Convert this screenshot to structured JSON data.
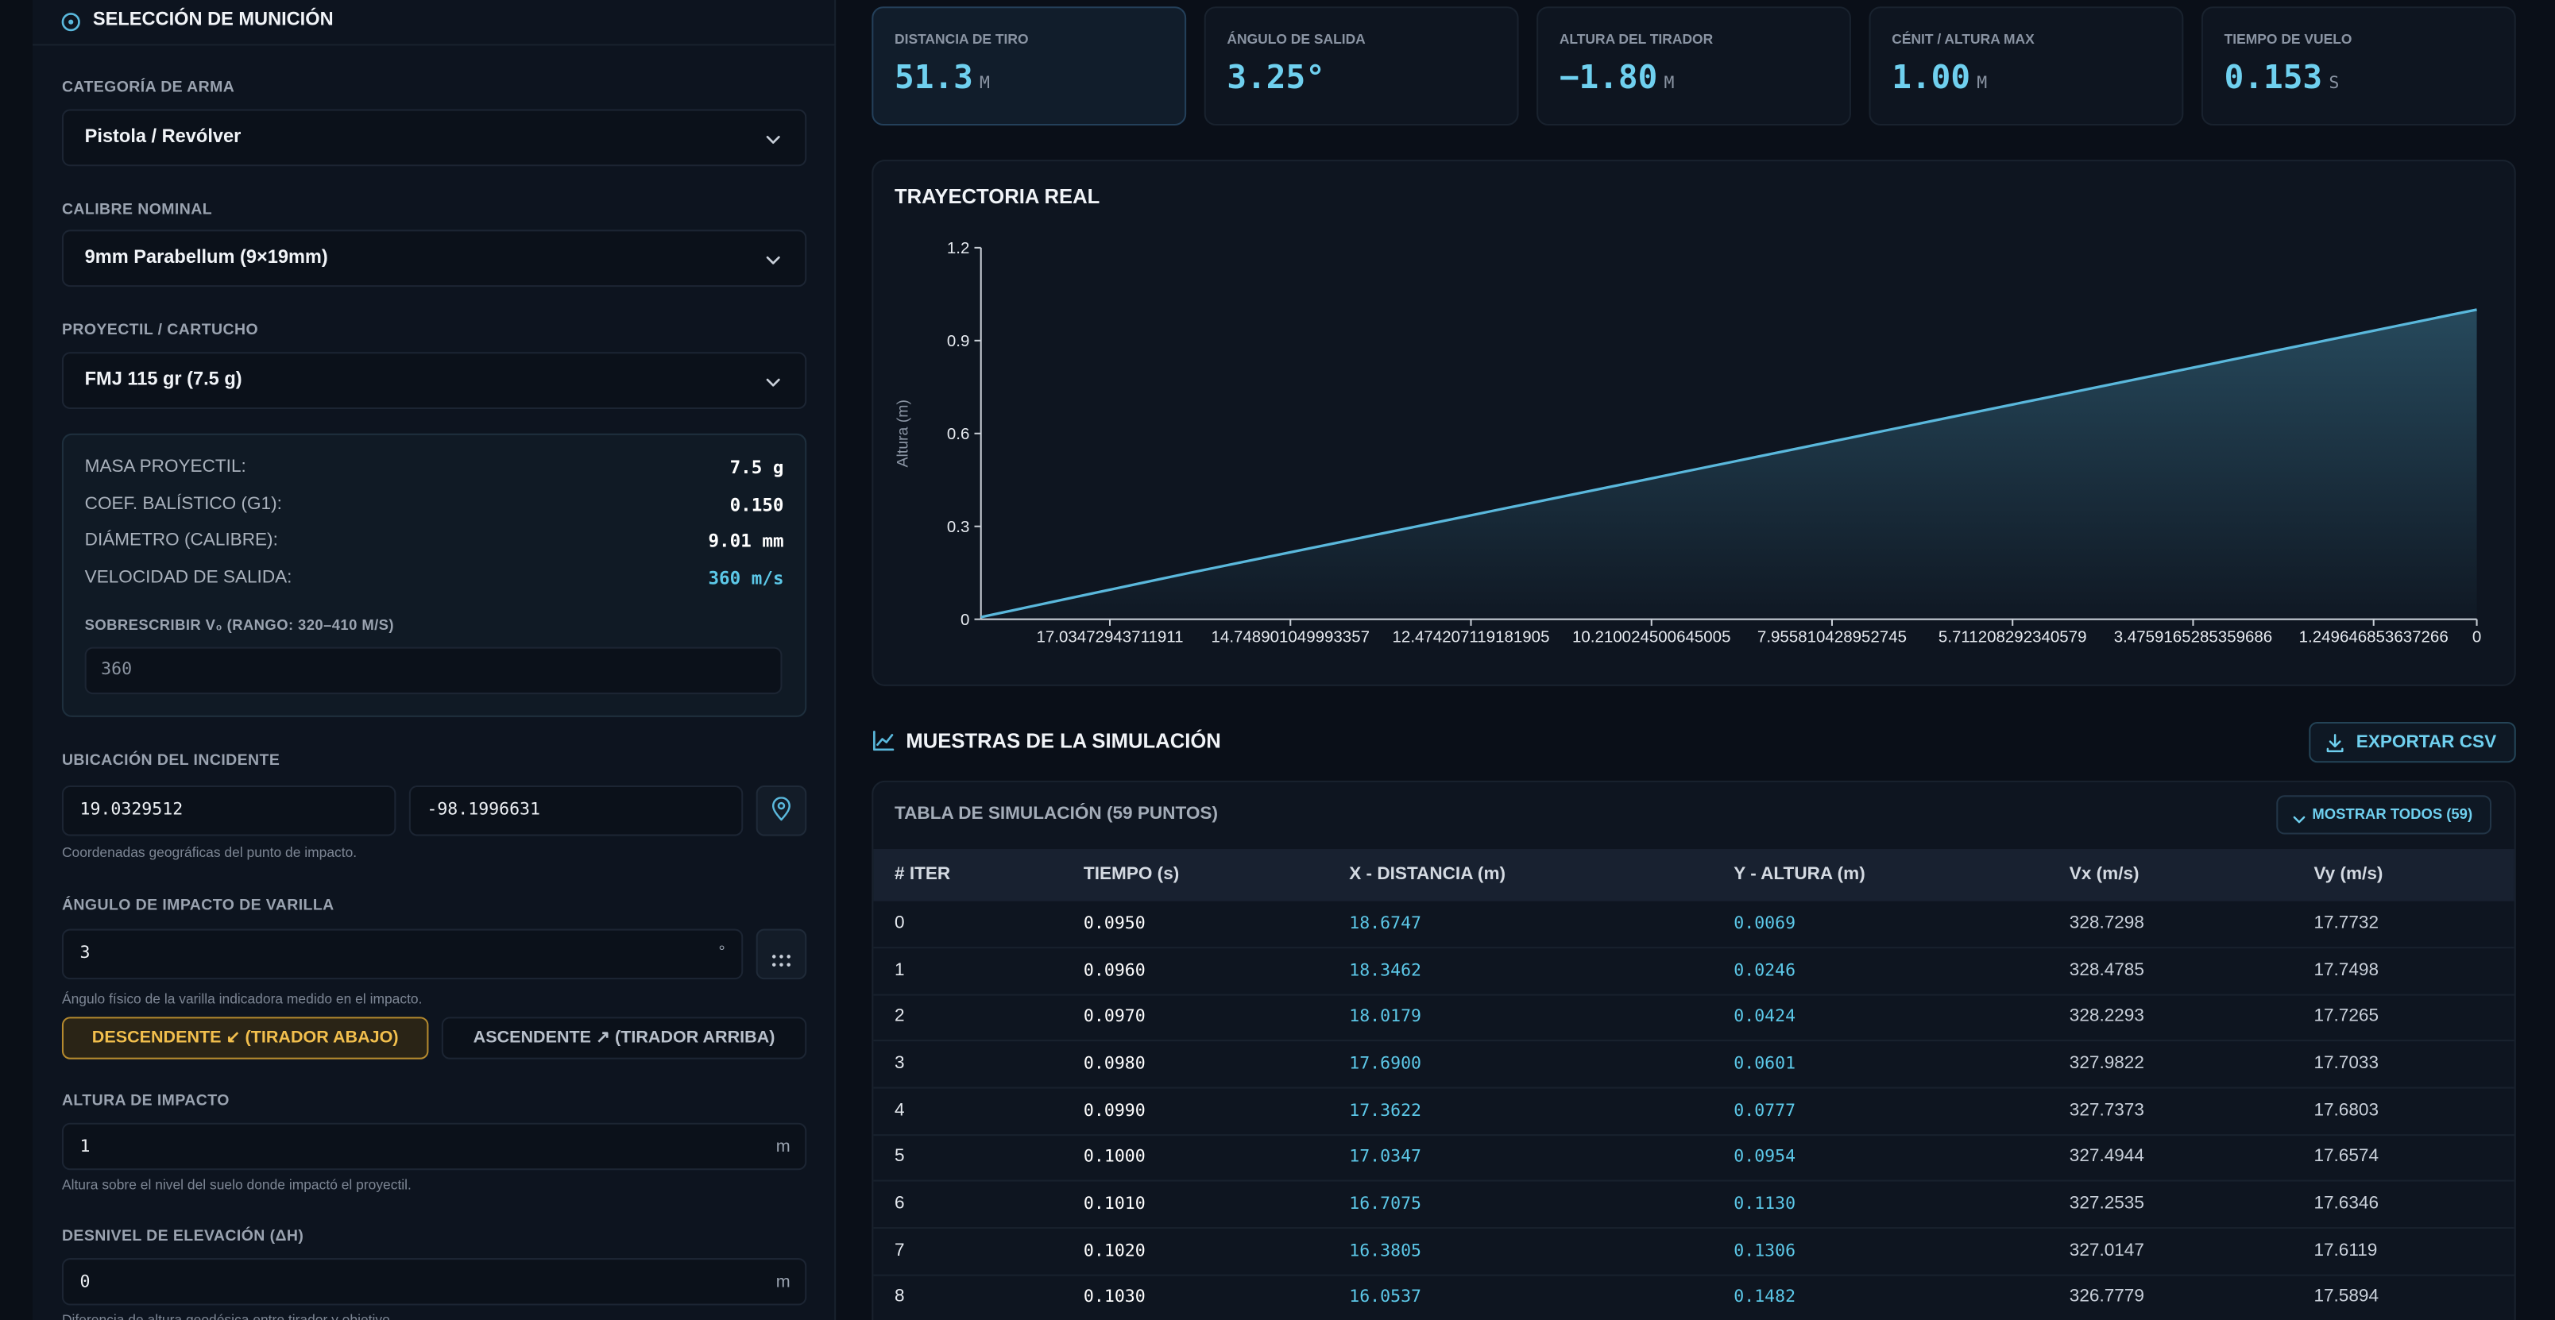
{
  "sidebar": {
    "title": "SELECCIÓN DE MUNICIÓN",
    "weapon_category": {
      "label": "CATEGORÍA DE ARMA",
      "value": "Pistola / Revólver"
    },
    "caliber": {
      "label": "CALIBRE NOMINAL",
      "value": "9mm Parabellum (9×19mm)"
    },
    "projectile": {
      "label": "PROYECTIL / CARTUCHO",
      "value": "FMJ 115 gr (7.5 g)"
    },
    "specs": [
      {
        "label": "MASA PROYECTIL:",
        "value": "7.5 g"
      },
      {
        "label": "COEF. BALÍSTICO (G1):",
        "value": "0.150"
      },
      {
        "label": "DIÁMETRO (CALIBRE):",
        "value": "9.01 mm"
      },
      {
        "label": "VELOCIDAD DE SALIDA:",
        "value": "360 m/s"
      }
    ],
    "velocity_override": {
      "label": "SOBRESCRIBIR V₀ (RANGO: 320–410 M/S)",
      "value": "360"
    },
    "location": {
      "label": "UBICACIÓN DEL INCIDENTE",
      "lat": "19.0329512",
      "lon": "-98.1996631",
      "hint": "Coordenadas geográficas del punto de impacto."
    },
    "rod_angle": {
      "label": "ÁNGULO DE IMPACTO DE VARILLA",
      "value": "3",
      "unit": "°",
      "hint": "Ángulo físico de la varilla indicadora medido en el impacto."
    },
    "direction": [
      "DESCENDENTE ↙ (TIRADOR ABAJO)",
      "ASCENDENTE ↗ (TIRADOR ARRIBA)"
    ],
    "impact_height": {
      "label": "ALTURA DE IMPACTO",
      "value": "1",
      "unit": "m",
      "hint": "Altura sobre el nivel del suelo donde impactó el proyectil."
    },
    "elevation": {
      "label": "DESNIVEL DE ELEVACIÓN (ΔH)",
      "value": "0",
      "unit": "m",
      "hint": "Diferencia de altura geodésica entre tirador y objetivo."
    }
  },
  "stats": [
    {
      "label": "DISTANCIA DE TIRO",
      "value": "51.3",
      "unit": "M"
    },
    {
      "label": "ÁNGULO DE SALIDA",
      "value": "3.25°",
      "unit": ""
    },
    {
      "label": "ALTURA DEL TIRADOR",
      "value": "−1.80",
      "unit": "M"
    },
    {
      "label": "CÉNIT / ALTURA MAX",
      "value": "1.00",
      "unit": "M"
    },
    {
      "label": "TIEMPO DE VUELO",
      "value": "0.153",
      "unit": "S"
    }
  ],
  "chart": {
    "type": "line",
    "title": "TRAYECTORIA REAL",
    "y_label": "Altura (m)",
    "color": "#5ab8dc",
    "categories": [
      null,
      null,
      null,
      null,
      null,
      "17.03472943711911",
      null,
      null,
      null,
      null,
      null,
      null,
      "14.748901049993357",
      null,
      null,
      null,
      null,
      null,
      null,
      "12.474207119181905",
      null,
      null,
      null,
      null,
      null,
      null,
      "10.210024500645005",
      null,
      null,
      null,
      null,
      null,
      null,
      "7.955810428952745",
      null,
      null,
      null,
      null,
      null,
      null,
      "5.711208292340579",
      null,
      null,
      null,
      null,
      null,
      null,
      "3.4759165285359686",
      null,
      null,
      null,
      null,
      null,
      null,
      "1.249646853637266",
      null,
      null,
      null,
      "0"
    ],
    "values": [
      0.0069,
      0.0246,
      0.0424,
      0.0601,
      0.0777,
      0.0954,
      0.113,
      0.1306,
      0.1482,
      0.1652,
      0.1823,
      0.1993,
      0.2164,
      0.2334,
      0.2504,
      0.2675,
      0.2845,
      0.3016,
      0.3186,
      0.3356,
      0.3527,
      0.3697,
      0.3868,
      0.4038,
      0.4208,
      0.4379,
      0.4549,
      0.472,
      0.489,
      0.506,
      0.5231,
      0.5401,
      0.5572,
      0.5742,
      0.5912,
      0.6083,
      0.6253,
      0.6424,
      0.6594,
      0.6764,
      0.6935,
      0.7105,
      0.7276,
      0.7446,
      0.7616,
      0.7787,
      0.7957,
      0.8128,
      0.8298,
      0.8468,
      0.8639,
      0.8809,
      0.898,
      0.915,
      0.932,
      0.9491,
      0.9661,
      0.9832,
      1.0
    ],
    "ylim": [
      0,
      1.2
    ],
    "yticks": [
      0,
      0.3,
      0.6,
      0.9,
      1.2
    ]
  },
  "samples": {
    "title": "MUESTRAS DE LA SIMULACIÓN",
    "export": "EXPORTAR CSV",
    "table_title": "TABLA DE SIMULACIÓN (59 PUNTOS)",
    "show_all": "MOSTRAR TODOS (59)",
    "columns": [
      "# ITER",
      "TIEMPO (s)",
      "X - DISTANCIA (m)",
      "Y - ALTURA (m)",
      "Vx (m/s)",
      "Vy (m/s)"
    ],
    "rows": [
      [
        "0",
        "0.0950",
        "18.6747",
        "0.0069",
        "328.7298",
        "17.7732"
      ],
      [
        "1",
        "0.0960",
        "18.3462",
        "0.0246",
        "328.4785",
        "17.7498"
      ],
      [
        "2",
        "0.0970",
        "18.0179",
        "0.0424",
        "328.2293",
        "17.7265"
      ],
      [
        "3",
        "0.0980",
        "17.6900",
        "0.0601",
        "327.9822",
        "17.7033"
      ],
      [
        "4",
        "0.0990",
        "17.3622",
        "0.0777",
        "327.7373",
        "17.6803"
      ],
      [
        "5",
        "0.1000",
        "17.0347",
        "0.0954",
        "327.4944",
        "17.6574"
      ],
      [
        "6",
        "0.1010",
        "16.7075",
        "0.1130",
        "327.2535",
        "17.6346"
      ],
      [
        "7",
        "0.1020",
        "16.3805",
        "0.1306",
        "327.0147",
        "17.6119"
      ],
      [
        "8",
        "0.1030",
        "16.0537",
        "0.1482",
        "326.7779",
        "17.5894"
      ]
    ]
  }
}
